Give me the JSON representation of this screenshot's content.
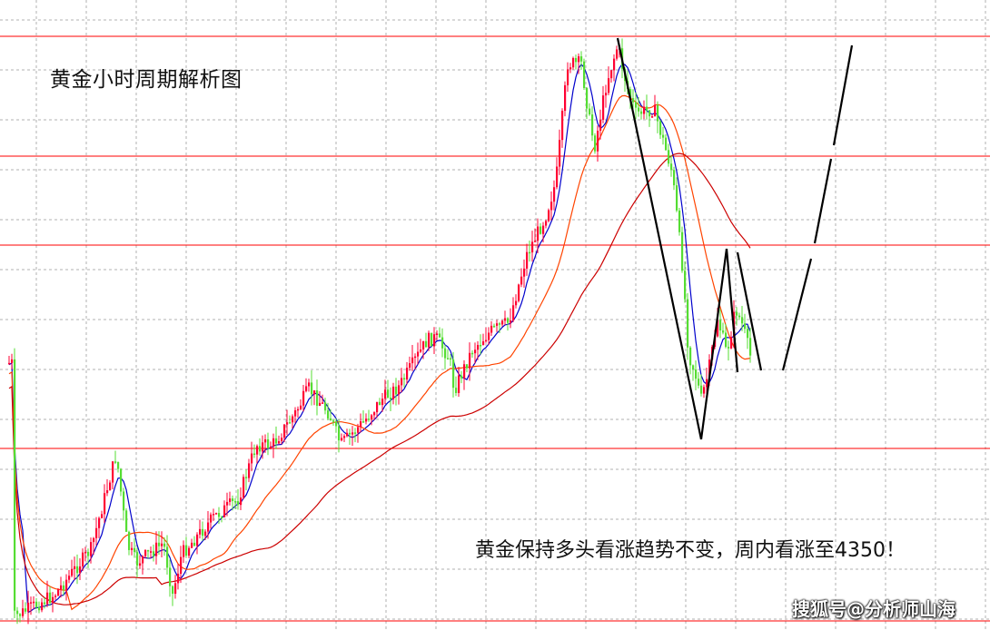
{
  "title": "黄金小时周期解析图",
  "annotation": "黄金保持多头看涨趋势不变，周内看涨至4350！",
  "watermark": "搜狐号@分析师山海",
  "chart_data": {
    "type": "candlestick",
    "colors": {
      "up_candle": "#ff0033",
      "down_candle": "#55dd33",
      "ma_short": "#0000cc",
      "ma_mid": "#ff4400",
      "ma_long": "#cc0000",
      "horizontal_level": "#ff0000",
      "forecast_line": "#000000",
      "grid": "#b0b0b0",
      "background": "#ffffff"
    },
    "grid": true,
    "horizontal_levels": 5,
    "pattern": "W-bottom with projected breakout upward"
  }
}
